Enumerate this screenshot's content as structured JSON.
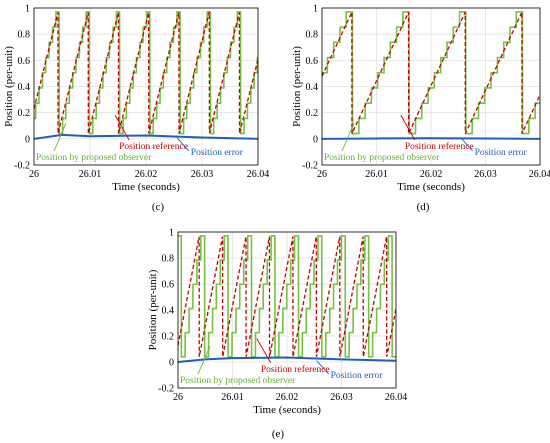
{
  "chart_data": [
    {
      "type": "line",
      "panel_label": "(c)",
      "xlabel": "Time (seconds)",
      "ylabel": "Position (per-unit)",
      "xlim": [
        26,
        26.04
      ],
      "ylim": [
        -0.2,
        1.0
      ],
      "xticks": [
        "26",
        "26.01",
        "26.02",
        "26.03",
        "26.04"
      ],
      "yticks": [
        "-0.2",
        "0",
        "0.2",
        "0.4",
        "0.6",
        "0.8",
        "1"
      ],
      "grid": true,
      "periods": {
        "reference": {
          "period": 0.0054,
          "phase": 0.0033,
          "min": 0.04,
          "max": 0.97
        },
        "observer": {
          "period": 0.0054,
          "phase": 0.0035,
          "min": 0.04,
          "max": 0.97,
          "steps": 9
        },
        "error": [
          [
            26.0,
            0.0
          ],
          [
            26.005,
            0.03
          ],
          [
            26.01,
            0.02
          ],
          [
            26.02,
            0.025
          ],
          [
            26.03,
            0.01
          ],
          [
            26.04,
            0.0
          ]
        ]
      },
      "annotations": {
        "observer_label": "Position by proposed observer",
        "reference_label": "Position reference",
        "error_label": "Position error"
      }
    },
    {
      "type": "line",
      "panel_label": "(d)",
      "xlabel": "Time (seconds)",
      "ylabel": "Position (per-unit)",
      "xlim": [
        26,
        26.04
      ],
      "ylim": [
        -0.2,
        1.0
      ],
      "xticks": [
        "26",
        "26.01",
        "26.02",
        "26.03",
        "26.04"
      ],
      "yticks": [
        "-0.2",
        "0",
        "0.2",
        "0.4",
        "0.6",
        "0.8",
        "1"
      ],
      "grid": true,
      "periods": {
        "reference": {
          "period": 0.0104,
          "phase": 0.0055,
          "min": 0.04,
          "max": 0.97
        },
        "observer": {
          "period": 0.0104,
          "phase": 0.0056,
          "min": 0.04,
          "max": 0.97,
          "steps": 9
        },
        "error": [
          [
            26.0,
            0.0
          ],
          [
            26.01,
            0.003
          ],
          [
            26.02,
            0.004
          ],
          [
            26.03,
            0.003
          ],
          [
            26.04,
            0.0
          ]
        ]
      },
      "annotations": {
        "observer_label": "Position by proposed observer",
        "reference_label": "Position reference",
        "error_label": "Position error"
      }
    },
    {
      "type": "line",
      "panel_label": "(e)",
      "xlabel": "Time (seconds)",
      "ylabel": "Position (per-unit)",
      "xlim": [
        26,
        26.04
      ],
      "ylim": [
        -0.2,
        1.0
      ],
      "xticks": [
        "26",
        "26.01",
        "26.02",
        "26.03",
        "26.04"
      ],
      "yticks": [
        "-0.2",
        "0",
        "0.2",
        "0.4",
        "0.6",
        "0.8",
        "1"
      ],
      "grid": true,
      "periods": {
        "reference": {
          "period": 0.0043,
          "phase": 0.0018,
          "min": 0.04,
          "max": 0.97
        },
        "observer": {
          "period": 0.0043,
          "phase": 0.0028,
          "min": 0.04,
          "max": 0.97,
          "steps": 6
        },
        "error": [
          [
            26.0,
            0.0
          ],
          [
            26.005,
            0.02
          ],
          [
            26.01,
            0.03
          ],
          [
            26.02,
            0.035
          ],
          [
            26.03,
            0.02
          ],
          [
            26.04,
            0.01
          ]
        ]
      },
      "annotations": {
        "observer_label": "Position by proposed observer",
        "reference_label": "Position reference",
        "error_label": "Position error"
      }
    }
  ],
  "colors": {
    "observer": "#77c043",
    "reference": "#c00000",
    "error": "#1f5fb4",
    "grid": "#e2e2e2",
    "observer_text": "#66b032",
    "reference_text": "#c00000",
    "error_text": "#1f5fb4"
  }
}
